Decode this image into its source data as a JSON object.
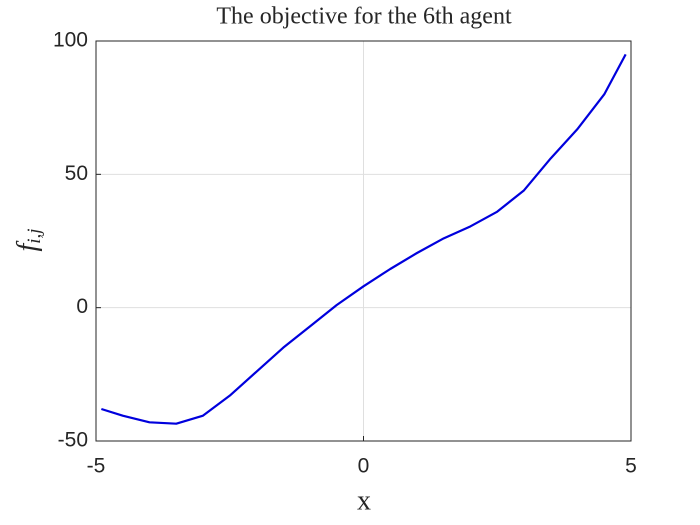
{
  "chart_data": {
    "type": "line",
    "title": "The objective for the 6th agent",
    "xlabel": "x",
    "ylabel": "f",
    "ylabel_subscript": "i,j",
    "x": [
      -4.9,
      -4.5,
      -4,
      -3.5,
      -3,
      -2.5,
      -2,
      -1.5,
      -1,
      -0.5,
      0,
      0.5,
      1,
      1.5,
      2,
      2.5,
      3,
      3.5,
      4,
      4.5,
      4.9
    ],
    "values": [
      -38,
      -40.5,
      -43,
      -43.5,
      -40.5,
      -33,
      -24,
      -15,
      -7,
      1,
      8,
      14.5,
      20.5,
      26,
      30.5,
      36,
      44,
      56,
      67,
      80,
      95
    ],
    "color": "#0000dd",
    "xlim": [
      -5,
      5
    ],
    "xticks": [
      -5,
      0,
      5
    ],
    "ylim": [
      -50,
      100
    ],
    "yticks": [
      -50,
      0,
      50,
      100
    ],
    "grid": true
  }
}
